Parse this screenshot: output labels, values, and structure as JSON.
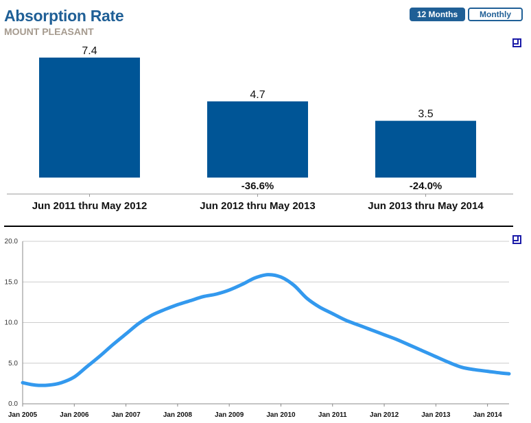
{
  "header": {
    "title": "Absorption Rate",
    "subtitle": "MOUNT PLEASANT"
  },
  "toggles": {
    "months_label": "12 Months",
    "monthly_label": "Monthly",
    "selected": "12 Months"
  },
  "colors": {
    "title": "#1f5f96",
    "subtitle": "#a59a8e",
    "bar": "#005596",
    "line": "#3399ee",
    "grid": "#cccccc"
  },
  "icons": {
    "expand": "expand-icon"
  },
  "chart_data": [
    {
      "type": "bar",
      "categories": [
        "Jun 2011 thru May 2012",
        "Jun 2012 thru May 2013",
        "Jun 2013 thru May 2014"
      ],
      "values": [
        7.4,
        4.7,
        3.5
      ],
      "value_labels": [
        "7.4",
        "4.7",
        "3.5"
      ],
      "change_labels": [
        "",
        "-36.6%",
        "-24.0%"
      ],
      "title": "",
      "xlabel": "",
      "ylabel": "",
      "grid": false
    },
    {
      "type": "line",
      "title": "",
      "xlabel": "",
      "ylabel": "",
      "xlim": [
        "2005-01",
        "2014-06"
      ],
      "ylim": [
        0,
        20
      ],
      "yticks": [
        "0.0",
        "5.0",
        "10.0",
        "15.0",
        "20.0"
      ],
      "xticks": [
        "Jan 2005",
        "Jan 2006",
        "Jan 2007",
        "Jan 2008",
        "Jan 2009",
        "Jan 2010",
        "Jan 2011",
        "Jan 2012",
        "Jan 2013",
        "Jan 2014"
      ],
      "grid": true,
      "series": [
        {
          "x": [
            "2005-01",
            "2005-04",
            "2005-07",
            "2005-10",
            "2006-01",
            "2006-04",
            "2006-07",
            "2006-10",
            "2007-01",
            "2007-04",
            "2007-07",
            "2007-10",
            "2008-01",
            "2008-04",
            "2008-07",
            "2008-10",
            "2009-01",
            "2009-04",
            "2009-07",
            "2009-10",
            "2010-01",
            "2010-04",
            "2010-07",
            "2010-10",
            "2011-01",
            "2011-04",
            "2011-07",
            "2011-10",
            "2012-01",
            "2012-04",
            "2012-07",
            "2012-10",
            "2013-01",
            "2013-04",
            "2013-07",
            "2013-10",
            "2014-01",
            "2014-04",
            "2014-06"
          ],
          "y": [
            2.6,
            2.3,
            2.3,
            2.6,
            3.3,
            4.6,
            5.9,
            7.3,
            8.6,
            9.9,
            10.9,
            11.6,
            12.2,
            12.7,
            13.2,
            13.5,
            14.0,
            14.7,
            15.5,
            15.9,
            15.6,
            14.6,
            13.0,
            11.9,
            11.1,
            10.3,
            9.7,
            9.1,
            8.5,
            7.9,
            7.2,
            6.5,
            5.8,
            5.1,
            4.5,
            4.2,
            4.0,
            3.8,
            3.7
          ]
        }
      ]
    }
  ]
}
